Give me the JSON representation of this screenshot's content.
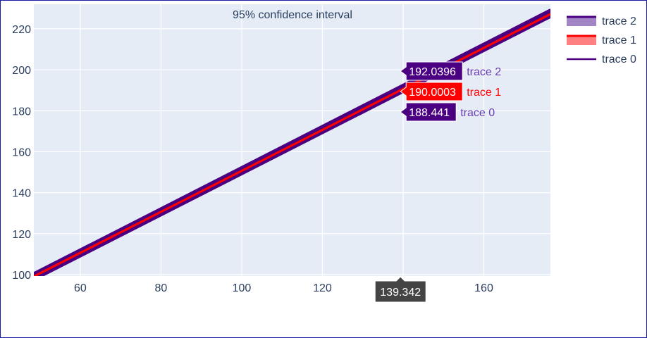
{
  "chart_data": {
    "type": "line",
    "title": "95% confidence interval",
    "xlabel": "",
    "ylabel": "",
    "xlim": [
      48.5,
      176.5
    ],
    "ylim": [
      99.3,
      232
    ],
    "x_ticks": [
      60,
      80,
      100,
      120,
      140,
      160
    ],
    "y_ticks": [
      100,
      120,
      140,
      160,
      180,
      200,
      220
    ],
    "x_tick_labels": [
      "60",
      "80",
      "100",
      "120",
      "140",
      "160"
    ],
    "y_tick_labels": [
      "100",
      "120",
      "140",
      "160",
      "180",
      "200",
      "220"
    ],
    "grid": true,
    "legend_position": "right",
    "series": [
      {
        "name": "trace 0",
        "kind": "line",
        "color": "#4b0082",
        "x": [
          48.5,
          139.342,
          176.5
        ],
        "y": [
          97.31,
          188.441,
          225.72
        ]
      },
      {
        "name": "trace 1",
        "kind": "line",
        "color": "#ff0000",
        "x": [
          48.5,
          139.342,
          176.5
        ],
        "y": [
          99.1,
          190.0003,
          227.18
        ]
      },
      {
        "name": "trace 2",
        "kind": "line",
        "color": "#4b0082",
        "x": [
          48.5,
          139.342,
          176.5
        ],
        "y": [
          100.73,
          192.0396,
          229.39
        ]
      },
      {
        "name": "",
        "kind": "band",
        "color": "#4b0082",
        "x": [
          48.5,
          139.342,
          176.5
        ],
        "y_low": [
          97.31,
          188.441,
          225.72
        ],
        "y_high": [
          100.73,
          192.0396,
          229.39
        ]
      }
    ],
    "hover": {
      "x_label": "139.342",
      "x_value": 139.342,
      "items": [
        {
          "value": "192.0396",
          "name": "trace 2",
          "bg": "#4b0082",
          "name_color": "#6a3db3"
        },
        {
          "value": "190.0003",
          "name": "trace 1",
          "bg": "#ff0000",
          "name_color": "#ff0000"
        },
        {
          "value": "188.441",
          "name": "trace 0",
          "bg": "#4b0082",
          "name_color": "#6a3db3"
        }
      ]
    },
    "legend": [
      {
        "name": "trace 2",
        "style": "band",
        "color": "#4b0082",
        "band_color": "#a185c4"
      },
      {
        "name": "trace 1",
        "style": "band",
        "color": "#ff0000",
        "band_color": "#ff8080"
      },
      {
        "name": "trace 0",
        "style": "line",
        "color": "#4b0082"
      }
    ],
    "colors": {
      "plot_bg": "#e5ecf6",
      "grid": "#ffffff",
      "text": "#2a3f5f",
      "hover_x_bg": "#444444"
    }
  }
}
